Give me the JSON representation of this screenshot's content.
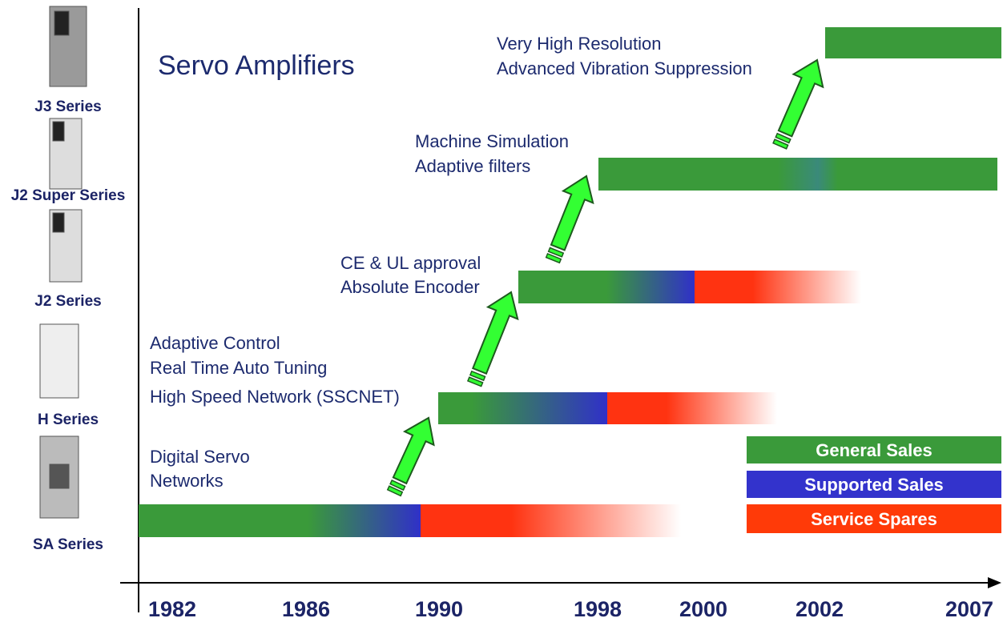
{
  "title": "Servo Amplifiers",
  "products": [
    "J3 Series",
    "J2 Super Series",
    "J2 Series",
    "H Series",
    "SA Series"
  ],
  "years": [
    "1982",
    "1986",
    "1990",
    "1998",
    "2000",
    "2002",
    "2007"
  ],
  "features": [
    [
      "Digital Servo",
      "Networks"
    ],
    [
      "Adaptive Control",
      "Real Time Auto Tuning",
      "High Speed Network (SSCNET)"
    ],
    [
      "CE & UL approval",
      "Absolute Encoder"
    ],
    [
      "Machine Simulation",
      "Adaptive filters"
    ],
    [
      "Very High Resolution",
      "Advanced Vibration Suppression"
    ]
  ],
  "legend": [
    "General Sales",
    "Supported Sales",
    "Service Spares"
  ]
}
